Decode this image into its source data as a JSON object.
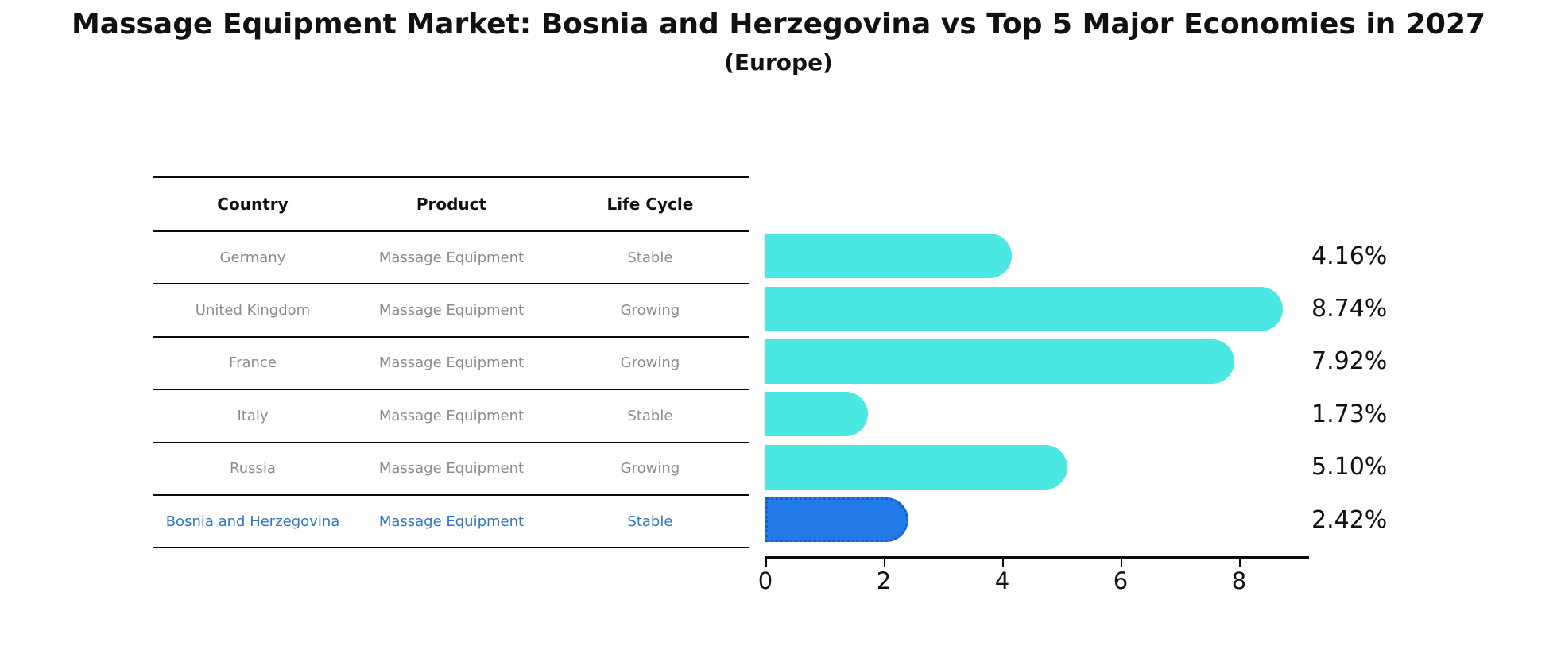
{
  "title": "Massage Equipment Market: Bosnia and Herzegovina vs Top 5 Major Economies in 2027",
  "subtitle": "(Europe)",
  "table": {
    "headers": [
      "Country",
      "Product",
      "Life Cycle"
    ],
    "rows": [
      {
        "country": "Germany",
        "product": "Massage Equipment",
        "life_cycle": "Stable",
        "highlight": false
      },
      {
        "country": "United Kingdom",
        "product": "Massage Equipment",
        "life_cycle": "Growing",
        "highlight": false
      },
      {
        "country": "France",
        "product": "Massage Equipment",
        "life_cycle": "Growing",
        "highlight": false
      },
      {
        "country": "Italy",
        "product": "Massage Equipment",
        "life_cycle": "Stable",
        "highlight": false
      },
      {
        "country": "Russia",
        "product": "Massage Equipment",
        "life_cycle": "Growing",
        "highlight": false
      },
      {
        "country": "Bosnia and Herzegovina",
        "product": "Massage Equipment",
        "life_cycle": "Stable",
        "highlight": true
      }
    ]
  },
  "chart_data": {
    "type": "bar",
    "orientation": "horizontal",
    "title": "Massage Equipment Market: Bosnia and Herzegovina vs Top 5 Major Economies in 2027",
    "subtitle": "(Europe)",
    "categories": [
      "Germany",
      "United Kingdom",
      "France",
      "Italy",
      "Russia",
      "Bosnia and Herzegovina"
    ],
    "values": [
      4.16,
      8.74,
      7.92,
      1.73,
      5.1,
      2.42
    ],
    "value_labels": [
      "4.16%",
      "8.74%",
      "7.92%",
      "1.73%",
      "5.10%",
      "2.42%"
    ],
    "xlabel": "",
    "ylabel": "",
    "xlim": [
      0,
      9.18
    ],
    "xticks": [
      0,
      2,
      4,
      6,
      8
    ],
    "grid": false,
    "legend": false,
    "highlight_index": 5
  },
  "colors": {
    "bar": "#4be7e3",
    "highlight_bar": "#2479e8",
    "highlight_text": "#2e78c8",
    "row_text": "#8c8c8c",
    "header_text": "#111111",
    "axis": "#0a0a0a"
  }
}
